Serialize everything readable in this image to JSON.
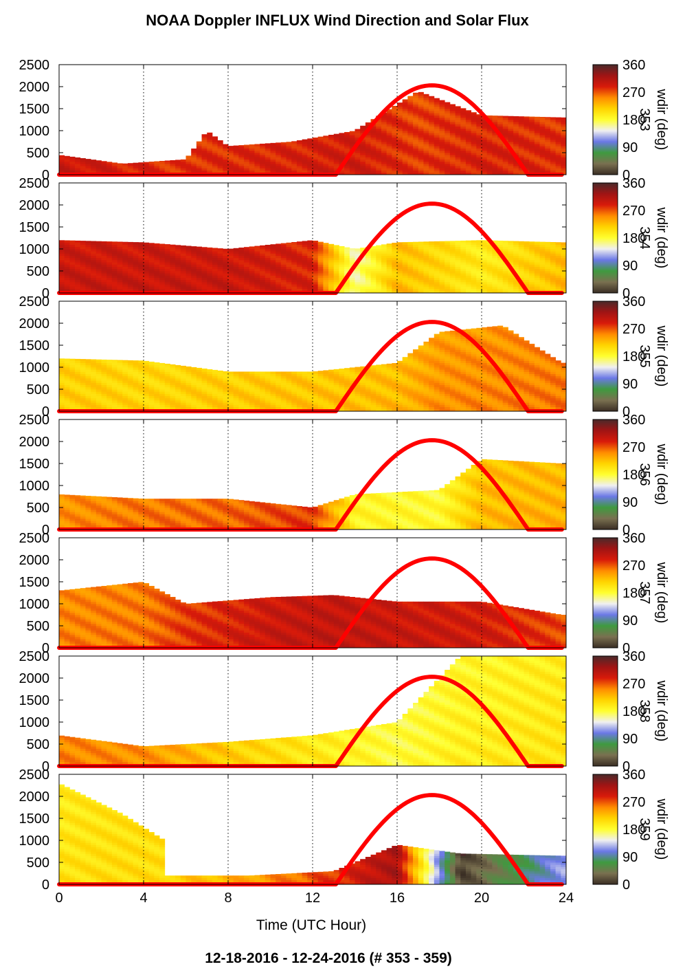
{
  "title": "NOAA Doppler INFLUX Wind Direction and Solar Flux",
  "footer": "12-18-2016 - 12-24-2016   (# 353 - 359)",
  "chart_data": {
    "type": "heatmap",
    "xlabel": "Time (UTC Hour)",
    "xlim": [
      0,
      24
    ],
    "x_ticks": [
      "0",
      "4",
      "8",
      "12",
      "16",
      "20",
      "24"
    ],
    "ylim": [
      0,
      2500
    ],
    "y_ticks": [
      "0",
      "500",
      "1000",
      "1500",
      "2000",
      "2500"
    ],
    "grid": "vertical dotted lines at x ticks",
    "colorbar": {
      "label": "wdir (deg)",
      "range": [
        0,
        360
      ],
      "ticks": [
        "0",
        "90",
        "180",
        "270",
        "360"
      ],
      "colors": [
        "#3a2e24",
        "#7a7050",
        "#3f9a3f",
        "#6b78e6",
        "#f0f0f0",
        "#ffff30",
        "#ffd400",
        "#ff8c00",
        "#d81a0a",
        "#a01414",
        "#4a2a2a"
      ]
    },
    "solar_flux_color": "#ff0000",
    "panels": [
      {
        "day_label": "353",
        "solar_flux": {
          "start": 13.1,
          "peak": 17.6,
          "end": 22.2,
          "peak_value": 2030
        },
        "profile": [
          {
            "x": 0,
            "top": 450,
            "dir": 300
          },
          {
            "x": 3,
            "top": 250,
            "dir": 290
          },
          {
            "x": 6,
            "top": 350,
            "dir": 280
          },
          {
            "x": 7,
            "top": 1000,
            "dir": 285
          },
          {
            "x": 8,
            "top": 650,
            "dir": 285
          },
          {
            "x": 11,
            "top": 750,
            "dir": 290
          },
          {
            "x": 14,
            "top": 1000,
            "dir": 295
          },
          {
            "x": 17,
            "top": 1900,
            "dir": 280
          },
          {
            "x": 20,
            "top": 1350,
            "dir": 290
          },
          {
            "x": 23.8,
            "top": 1300,
            "dir": 285
          }
        ],
        "sparse": []
      },
      {
        "day_label": "354",
        "solar_flux": {
          "start": 13.1,
          "peak": 17.6,
          "end": 22.2,
          "peak_value": 2030
        },
        "profile": [
          {
            "x": 0,
            "top": 1200,
            "dir": 300
          },
          {
            "x": 4,
            "top": 1150,
            "dir": 300
          },
          {
            "x": 8,
            "top": 1000,
            "dir": 300
          },
          {
            "x": 12,
            "top": 1200,
            "dir": 290
          },
          {
            "x": 14,
            "top": 1000,
            "dir": 160
          },
          {
            "x": 16,
            "top": 1150,
            "dir": 230
          },
          {
            "x": 20,
            "top": 1200,
            "dir": 200
          },
          {
            "x": 23.8,
            "top": 1150,
            "dir": 230
          }
        ],
        "sparse": []
      },
      {
        "day_label": "355",
        "solar_flux": {
          "start": 13.1,
          "peak": 17.6,
          "end": 22.2,
          "peak_value": 2030
        },
        "profile": [
          {
            "x": 0,
            "top": 1200,
            "dir": 220
          },
          {
            "x": 4,
            "top": 1150,
            "dir": 215
          },
          {
            "x": 8,
            "top": 900,
            "dir": 220
          },
          {
            "x": 12,
            "top": 900,
            "dir": 225
          },
          {
            "x": 16,
            "top": 1100,
            "dir": 230
          },
          {
            "x": 18,
            "top": 1800,
            "dir": 250
          },
          {
            "x": 21,
            "top": 1950,
            "dir": 255
          },
          {
            "x": 23.8,
            "top": 1100,
            "dir": 260
          }
        ],
        "sparse": []
      },
      {
        "day_label": "356",
        "solar_flux": {
          "start": 13.1,
          "peak": 17.6,
          "end": 22.2,
          "peak_value": 2030
        },
        "profile": [
          {
            "x": 0,
            "top": 800,
            "dir": 250
          },
          {
            "x": 4,
            "top": 700,
            "dir": 260
          },
          {
            "x": 8,
            "top": 700,
            "dir": 265
          },
          {
            "x": 12,
            "top": 500,
            "dir": 280
          },
          {
            "x": 14,
            "top": 800,
            "dir": 190
          },
          {
            "x": 18,
            "top": 900,
            "dir": 185
          },
          {
            "x": 20,
            "top": 1600,
            "dir": 230
          },
          {
            "x": 23.8,
            "top": 1500,
            "dir": 235
          }
        ],
        "sparse": []
      },
      {
        "day_label": "357",
        "solar_flux": {
          "start": 13.1,
          "peak": 17.6,
          "end": 22.2,
          "peak_value": 2030
        },
        "profile": [
          {
            "x": 0,
            "top": 1300,
            "dir": 255
          },
          {
            "x": 4,
            "top": 1500,
            "dir": 260
          },
          {
            "x": 6,
            "top": 1000,
            "dir": 280
          },
          {
            "x": 10,
            "top": 1150,
            "dir": 300
          },
          {
            "x": 13,
            "top": 1200,
            "dir": 305
          },
          {
            "x": 16,
            "top": 1050,
            "dir": 300
          },
          {
            "x": 20,
            "top": 1050,
            "dir": 295
          },
          {
            "x": 23.8,
            "top": 750,
            "dir": 275
          }
        ],
        "sparse": []
      },
      {
        "day_label": "358",
        "solar_flux": {
          "start": 13.1,
          "peak": 17.6,
          "end": 22.2,
          "peak_value": 2030
        },
        "profile": [
          {
            "x": 0,
            "top": 700,
            "dir": 255
          },
          {
            "x": 4,
            "top": 450,
            "dir": 250
          },
          {
            "x": 8,
            "top": 550,
            "dir": 220
          },
          {
            "x": 12,
            "top": 700,
            "dir": 200
          },
          {
            "x": 16,
            "top": 1000,
            "dir": 180
          },
          {
            "x": 19,
            "top": 2500,
            "dir": 195
          },
          {
            "x": 23.8,
            "top": 2500,
            "dir": 205
          }
        ],
        "sparse": []
      },
      {
        "day_label": "359",
        "solar_flux": {
          "start": 13.1,
          "peak": 17.6,
          "end": 22.2,
          "peak_value": 2030
        },
        "profile": [
          {
            "x": 0,
            "top": 2300,
            "dir": 205
          },
          {
            "x": 3,
            "top": 1600,
            "dir": 210
          },
          {
            "x": 5,
            "top": 1000,
            "dir": 210
          },
          {
            "x": 5.1,
            "top": 200,
            "dir": 215
          },
          {
            "x": 9,
            "top": 200,
            "dir": 240
          },
          {
            "x": 13,
            "top": 300,
            "dir": 280
          },
          {
            "x": 16,
            "top": 900,
            "dir": 320
          },
          {
            "x": 19,
            "top": 700,
            "dir": 10
          },
          {
            "x": 23.8,
            "top": 650,
            "dir": 120
          }
        ],
        "sparse": []
      }
    ]
  }
}
